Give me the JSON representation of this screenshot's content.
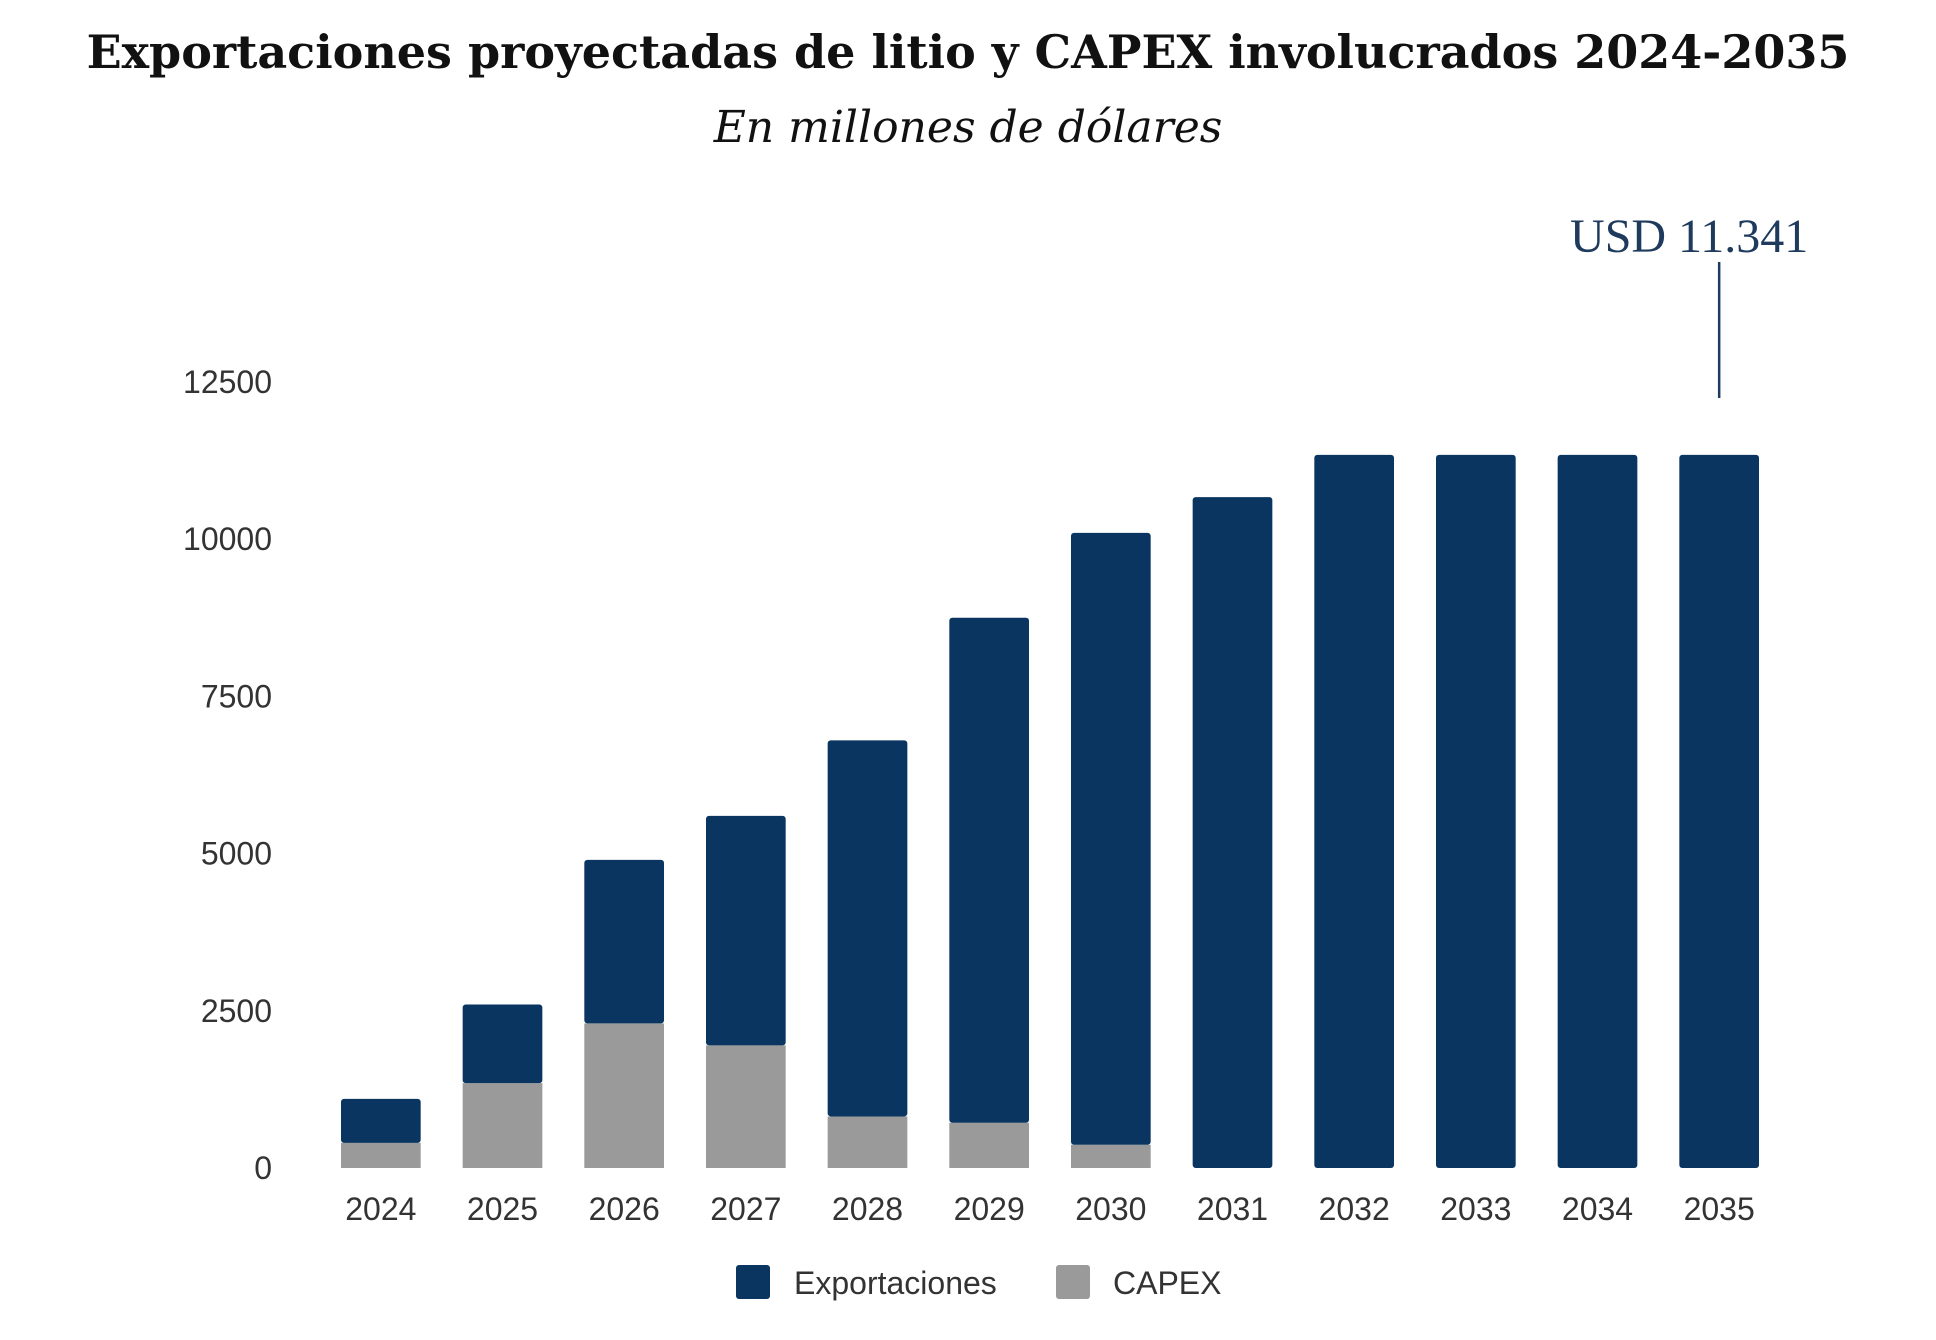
{
  "chart_data": {
    "type": "bar",
    "stacked": true,
    "title": "Exportaciones proyectadas de litio y CAPEX involucrados 2024-2035",
    "subtitle": "En millones de dólares",
    "categories": [
      "2024",
      "2025",
      "2026",
      "2027",
      "2028",
      "2029",
      "2030",
      "2031",
      "2032",
      "2033",
      "2034",
      "2035"
    ],
    "series": [
      {
        "name": "CAPEX",
        "color": "#9a9a9a",
        "values": [
          400,
          1350,
          2300,
          1950,
          820,
          720,
          370,
          0,
          0,
          0,
          0,
          0
        ]
      },
      {
        "name": "Exportaciones",
        "color": "#0a3560",
        "values": [
          700,
          1250,
          2600,
          3650,
          5980,
          8030,
          9730,
          10670,
          11341,
          11341,
          11341,
          11341
        ]
      }
    ],
    "ylim": [
      0,
      12500
    ],
    "yticks": [
      "0",
      "2500",
      "5000",
      "7500",
      "10000",
      "12500"
    ],
    "ytick_values": [
      0,
      2500,
      5000,
      7500,
      10000,
      12500
    ],
    "legend": {
      "position": "bottom",
      "entries": [
        "Exportaciones",
        "CAPEX"
      ]
    },
    "annotation": {
      "text": "USD 11.341",
      "category": "2035"
    },
    "xlabel": "",
    "ylabel": ""
  }
}
